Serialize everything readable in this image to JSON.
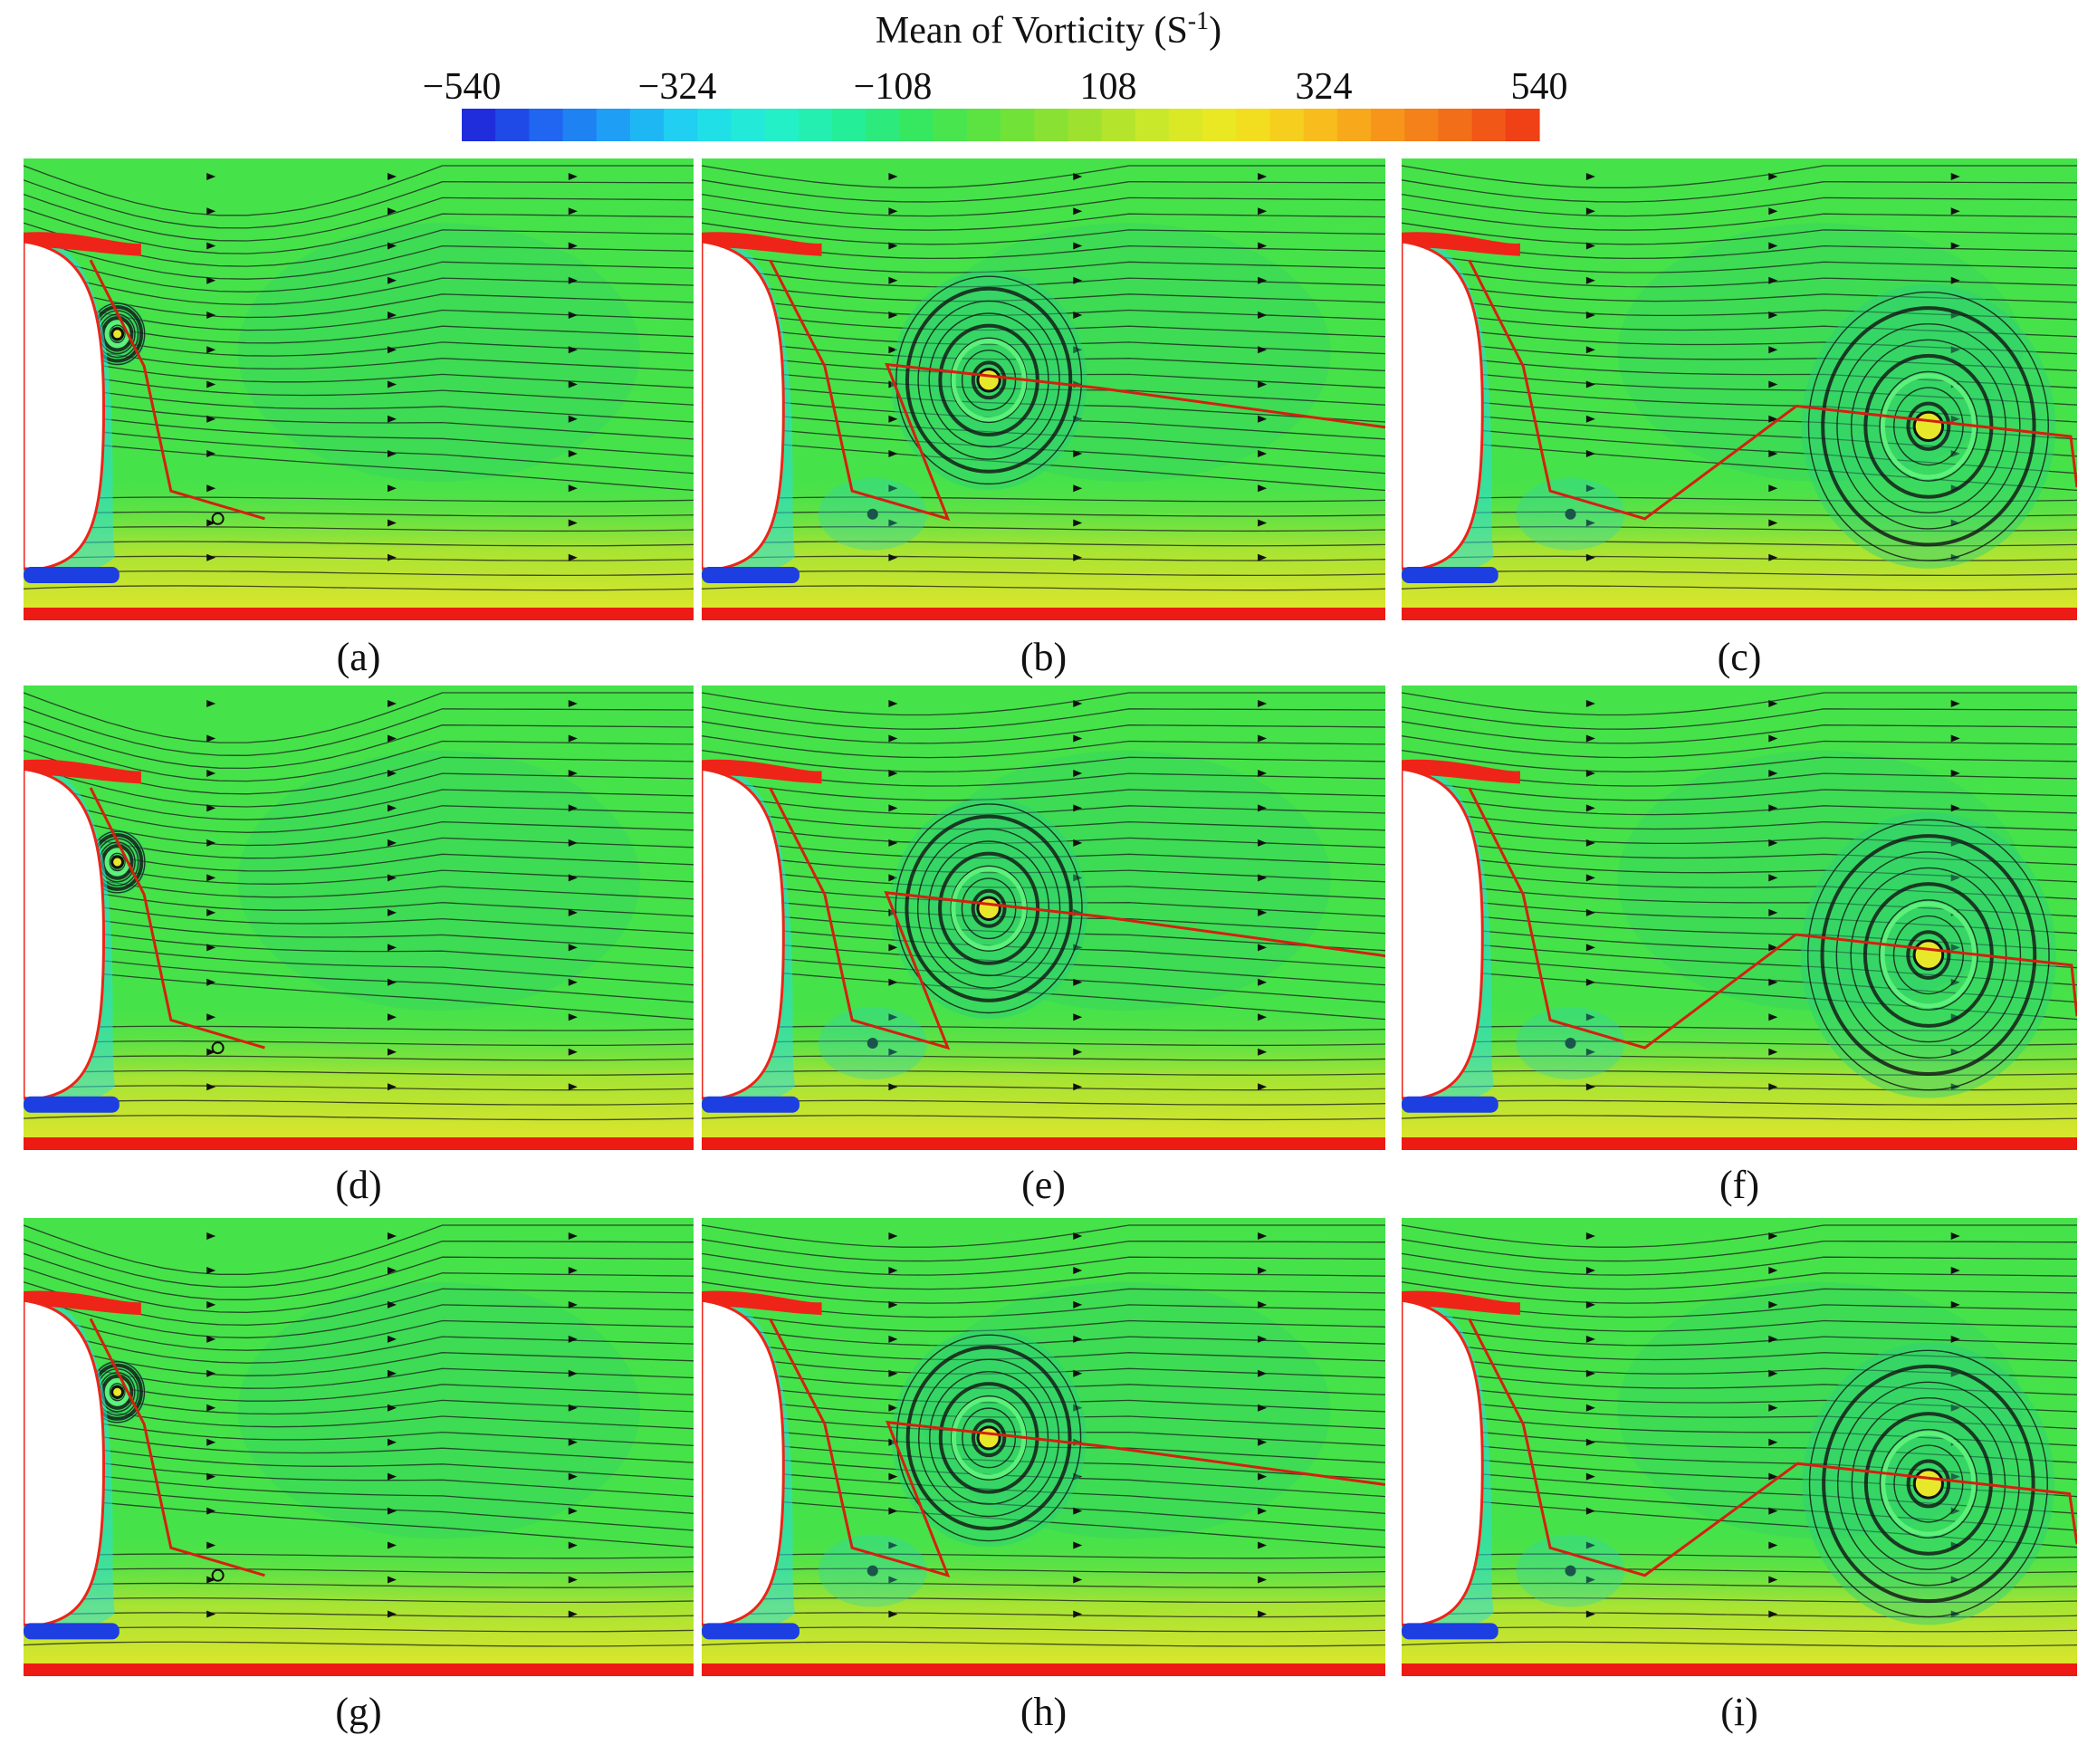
{
  "colorbar": {
    "title": "Mean of Vorticity (S",
    "title_sup": "-1",
    "title_end": ")",
    "ticks": [
      "−540",
      "−324",
      "−108",
      "108",
      "324",
      "540"
    ],
    "colors": [
      "#1f1fd8",
      "#2060f0",
      "#1fa0f5",
      "#20d8f0",
      "#24f0d0",
      "#24ee9a",
      "#38e65a",
      "#66e23a",
      "#9ae030",
      "#cce82a",
      "#f0e820",
      "#f8c41c",
      "#f6961a",
      "#f26a18",
      "#ee3416"
    ]
  },
  "panels": [
    {
      "label": "(a)",
      "vortex": "small"
    },
    {
      "label": "(b)",
      "vortex": "mid"
    },
    {
      "label": "(c)",
      "vortex": "far"
    },
    {
      "label": "(d)",
      "vortex": "small"
    },
    {
      "label": "(e)",
      "vortex": "mid"
    },
    {
      "label": "(f)",
      "vortex": "far"
    },
    {
      "label": "(g)",
      "vortex": "small"
    },
    {
      "label": "(h)",
      "vortex": "mid"
    },
    {
      "label": "(i)",
      "vortex": "far"
    }
  ],
  "field_colors": {
    "background": "#46e24a",
    "bottom_wall": "#ee1a14",
    "shear_layer": "#ee2418",
    "negative": "#1d3ee0",
    "cyan": "#2adfe0",
    "yellow": "#e6e62a",
    "streamline": "#1a1a1a",
    "separation_line": "#d42010"
  }
}
